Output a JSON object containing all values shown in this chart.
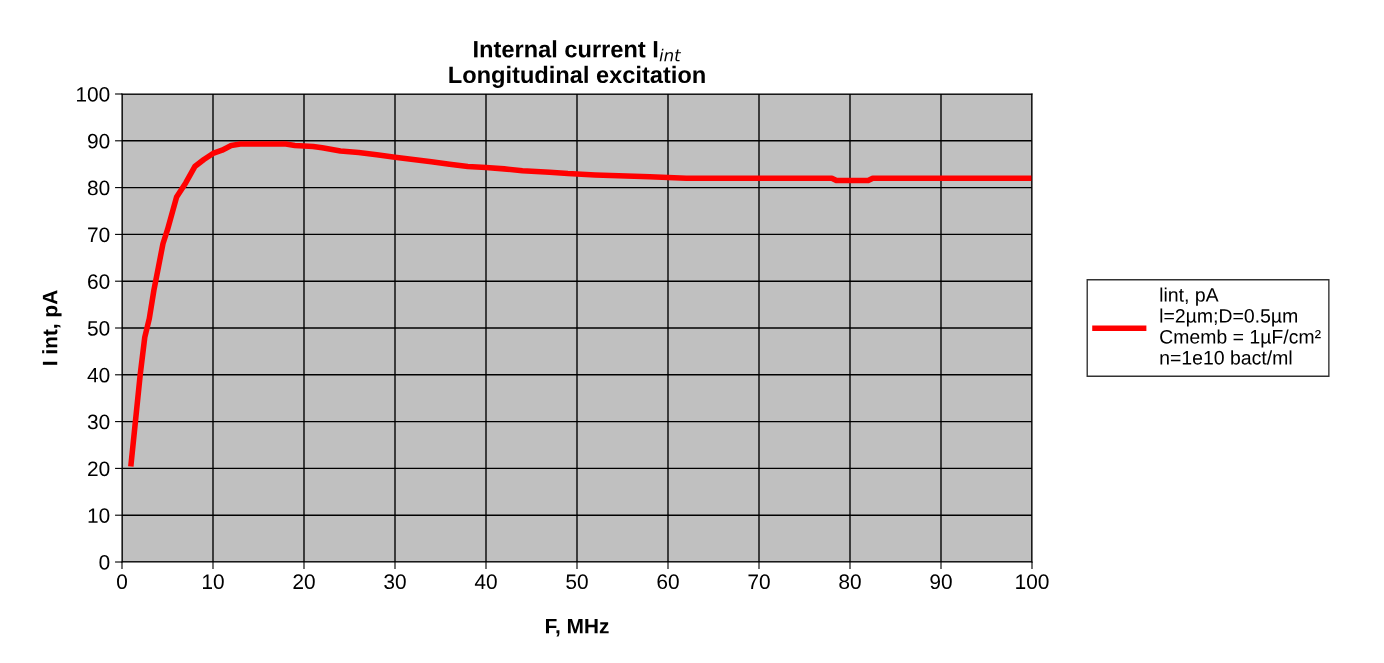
{
  "chart_data": {
    "type": "line",
    "title": "Internal current I$_{int}$\nLongitudinal excitation",
    "xlabel": "F, MHz",
    "ylabel": "I int, pA",
    "x": [
      1,
      2,
      2.5,
      3,
      3.5,
      4,
      4.5,
      5,
      6,
      7,
      8,
      9,
      10,
      11,
      12,
      13,
      15,
      18,
      19,
      21,
      22,
      24,
      26,
      28,
      30,
      32,
      34,
      36,
      38,
      40,
      42,
      44,
      47,
      49,
      52,
      58,
      62,
      78,
      78.5,
      82,
      82.5,
      100
    ],
    "series": [
      {
        "name": "lint, pA\nl=2µm;D=0.5µm\nCmemb = 1µF/cm²\nn=1e10 bact/ml",
        "color": "#ff0000",
        "values": [
          21,
          40,
          48,
          52,
          58,
          63,
          68,
          71,
          78,
          81,
          84.5,
          86,
          87.3,
          88,
          89,
          89.3,
          89.3,
          89.3,
          89,
          88.8,
          88.5,
          87.8,
          87.5,
          87,
          86.5,
          86,
          85.5,
          85,
          84.5,
          84.3,
          84,
          83.6,
          83.3,
          83,
          82.7,
          82.3,
          82,
          82,
          81.5,
          81.5,
          82,
          82
        ]
      }
    ],
    "xlim": [
      0,
      100
    ],
    "xticks": [
      0,
      10,
      20,
      30,
      40,
      50,
      60,
      70,
      80,
      90,
      100
    ],
    "ylim": [
      0,
      100
    ],
    "yticks": [
      0,
      10,
      20,
      30,
      40,
      50,
      60,
      70,
      80,
      90,
      100
    ],
    "grid": true,
    "legend": "right",
    "marker": "none",
    "line_style": "solid"
  }
}
